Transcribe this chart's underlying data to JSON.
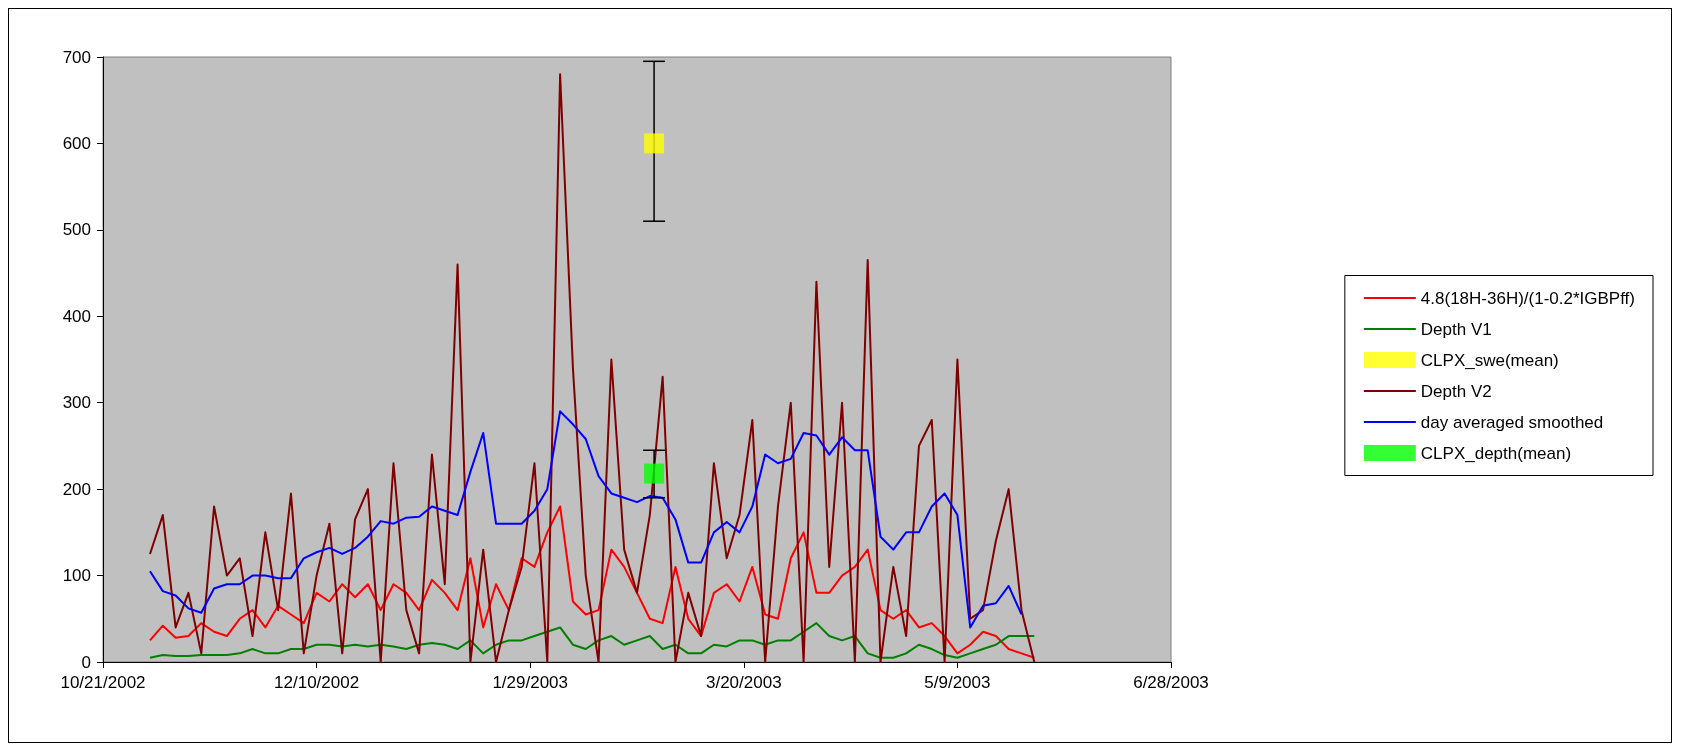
{
  "chart_data": {
    "type": "line",
    "x": [
      "2002-11-01",
      "2002-11-04",
      "2002-11-07",
      "2002-11-10",
      "2002-11-13",
      "2002-11-16",
      "2002-11-19",
      "2002-11-22",
      "2002-11-25",
      "2002-11-28",
      "2002-12-01",
      "2002-12-04",
      "2002-12-07",
      "2002-12-10",
      "2002-12-13",
      "2002-12-16",
      "2002-12-19",
      "2002-12-22",
      "2002-12-25",
      "2002-12-28",
      "2002-12-31",
      "2003-01-03",
      "2003-01-06",
      "2003-01-09",
      "2003-01-12",
      "2003-01-15",
      "2003-01-18",
      "2003-01-21",
      "2003-01-24",
      "2003-01-27",
      "2003-01-30",
      "2003-02-02",
      "2003-02-05",
      "2003-02-08",
      "2003-02-11",
      "2003-02-14",
      "2003-02-17",
      "2003-02-20",
      "2003-02-23",
      "2003-02-26",
      "2003-03-01",
      "2003-03-04",
      "2003-03-07",
      "2003-03-10",
      "2003-03-13",
      "2003-03-16",
      "2003-03-19",
      "2003-03-22",
      "2003-03-25",
      "2003-03-28",
      "2003-03-31",
      "2003-04-03",
      "2003-04-06",
      "2003-04-09",
      "2003-04-12",
      "2003-04-15",
      "2003-04-18",
      "2003-04-21",
      "2003-04-24",
      "2003-04-27",
      "2003-04-30",
      "2003-05-03",
      "2003-05-06",
      "2003-05-09",
      "2003-05-12",
      "2003-05-15",
      "2003-05-18",
      "2003-05-21",
      "2003-05-24",
      "2003-05-27"
    ],
    "series": [
      {
        "name": "4.8(18H-36H)/(1-0.2*IGBPff)",
        "color": "#ff0000",
        "values": [
          25,
          42,
          28,
          30,
          45,
          35,
          30,
          50,
          60,
          40,
          65,
          55,
          45,
          80,
          70,
          90,
          75,
          90,
          60,
          90,
          80,
          60,
          95,
          80,
          60,
          120,
          40,
          90,
          60,
          120,
          110,
          150,
          180,
          70,
          55,
          60,
          130,
          110,
          80,
          50,
          45,
          110,
          50,
          30,
          80,
          90,
          70,
          110,
          55,
          50,
          120,
          150,
          80,
          80,
          100,
          110,
          130,
          60,
          50,
          60,
          40,
          45,
          30,
          10,
          20,
          35,
          30,
          15,
          10,
          5
        ]
      },
      {
        "name": "Depth V1",
        "color": "#008000",
        "values": [
          5,
          8,
          7,
          7,
          8,
          8,
          8,
          10,
          15,
          10,
          10,
          15,
          15,
          20,
          20,
          18,
          20,
          18,
          20,
          18,
          15,
          20,
          22,
          20,
          15,
          25,
          10,
          20,
          25,
          25,
          30,
          35,
          40,
          20,
          15,
          25,
          30,
          20,
          25,
          30,
          15,
          20,
          10,
          10,
          20,
          18,
          25,
          25,
          20,
          25,
          25,
          35,
          45,
          30,
          25,
          30,
          10,
          5,
          5,
          10,
          20,
          15,
          8,
          5,
          10,
          15,
          20,
          30,
          30,
          30
        ]
      },
      {
        "name": "CLPX_swe(mean)",
        "type": "scatter",
        "marker": "square",
        "color": "#ffff00",
        "x": [
          "2003-02-27"
        ],
        "values": [
          600
        ],
        "errors": [
          [
            510,
            695
          ]
        ]
      },
      {
        "name": "Depth V2",
        "color": "#800000",
        "values": [
          125,
          170,
          40,
          80,
          10,
          180,
          100,
          120,
          30,
          150,
          60,
          195,
          10,
          100,
          160,
          10,
          165,
          200,
          0,
          230,
          60,
          10,
          240,
          90,
          460,
          0,
          130,
          0,
          60,
          110,
          230,
          0,
          680,
          340,
          100,
          0,
          350,
          130,
          80,
          170,
          330,
          0,
          80,
          30,
          230,
          120,
          170,
          280,
          0,
          180,
          300,
          0,
          440,
          110,
          300,
          0,
          465,
          0,
          110,
          30,
          250,
          280,
          0,
          350,
          50,
          60,
          140,
          200,
          60,
          0
        ]
      },
      {
        "name": "day averaged smoothed",
        "color": "#0000ff",
        "values": [
          105,
          82,
          77,
          62,
          57,
          85,
          90,
          90,
          100,
          100,
          97,
          97,
          120,
          127,
          132,
          125,
          132,
          145,
          163,
          160,
          167,
          168,
          180,
          175,
          170,
          220,
          265,
          160,
          160,
          160,
          175,
          200,
          290,
          275,
          258,
          215,
          195,
          190,
          185,
          192,
          190,
          165,
          115,
          115,
          150,
          162,
          150,
          180,
          240,
          230,
          235,
          265,
          262,
          240,
          260,
          245,
          245,
          145,
          130,
          150,
          150,
          180,
          195,
          170,
          40,
          65,
          68,
          88,
          55,
          null
        ]
      },
      {
        "name": "CLPX_depth(mean)",
        "type": "scatter",
        "marker": "square",
        "color": "#00ff00",
        "x": [
          "2003-02-27"
        ],
        "values": [
          218
        ],
        "errors": [
          [
            190,
            245
          ]
        ]
      }
    ],
    "xlim": [
      "2002-10-21",
      "2003-06-28"
    ],
    "xticks": [
      {
        "value": "2002-10-21",
        "label": "10/21/2002"
      },
      {
        "value": "2002-12-10",
        "label": "12/10/2002"
      },
      {
        "value": "2003-01-29",
        "label": "1/29/2003"
      },
      {
        "value": "2003-03-20",
        "label": "3/20/2003"
      },
      {
        "value": "2003-05-09",
        "label": "5/9/2003"
      },
      {
        "value": "2003-06-28",
        "label": "6/28/2003"
      }
    ],
    "ylim": [
      0,
      700
    ],
    "yticks": [
      0,
      100,
      200,
      300,
      400,
      500,
      600,
      700
    ],
    "grid": false,
    "legend": "right",
    "marker": "none"
  }
}
